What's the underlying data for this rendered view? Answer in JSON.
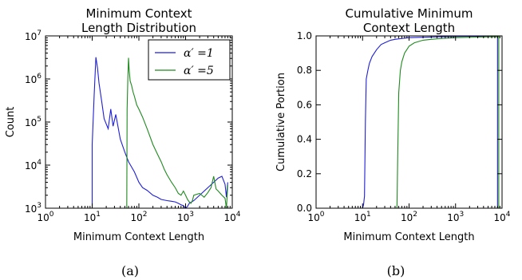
{
  "chart_data": [
    {
      "type": "line",
      "title": [
        "Minimum Context",
        "Length Distribution"
      ],
      "xlabel": "Minimum Context Length",
      "ylabel": "Count",
      "xscale": "log",
      "yscale": "log",
      "xlim": [
        1,
        10000
      ],
      "ylim": [
        1000,
        10000000
      ],
      "x_ticks": [
        {
          "base": "10",
          "exp": "0"
        },
        {
          "base": "10",
          "exp": "1"
        },
        {
          "base": "10",
          "exp": "2"
        },
        {
          "base": "10",
          "exp": "3"
        },
        {
          "base": "10",
          "exp": "4"
        }
      ],
      "y_ticks": [
        {
          "base": "10",
          "exp": "3"
        },
        {
          "base": "10",
          "exp": "4"
        },
        {
          "base": "10",
          "exp": "5"
        },
        {
          "base": "10",
          "exp": "6"
        },
        {
          "base": "10",
          "exp": "7"
        }
      ],
      "legend_position": "top-right",
      "caption": "(a)",
      "series": [
        {
          "name": "α′ =1",
          "color": "#1f1fd6",
          "x": [
            10,
            10,
            11,
            12,
            13,
            14,
            16,
            18,
            20,
            22,
            25,
            28,
            32,
            40,
            50,
            60,
            70,
            80,
            100,
            120,
            150,
            200,
            250,
            300,
            400,
            500,
            600,
            700,
            800,
            900,
            1000,
            1100,
            1200,
            1500,
            2000,
            3000,
            4000,
            5000,
            6000,
            7000,
            7500,
            8000
          ],
          "y": [
            1000,
            30000,
            400000,
            3200000,
            1800000,
            800000,
            300000,
            120000,
            90000,
            70000,
            200000,
            80000,
            150000,
            40000,
            20000,
            12000,
            9000,
            7000,
            4000,
            3000,
            2600,
            2000,
            1800,
            1600,
            1500,
            1450,
            1400,
            1300,
            1200,
            1150,
            1000,
            1100,
            1300,
            1500,
            2000,
            3000,
            4000,
            5000,
            5500,
            3600,
            1800,
            4000
          ]
        },
        {
          "name": "α′ =5",
          "color": "#1f8a1f",
          "x": [
            55,
            56,
            58,
            60,
            62,
            65,
            70,
            75,
            80,
            90,
            100,
            120,
            150,
            200,
            250,
            300,
            350,
            400,
            500,
            600,
            700,
            800,
            900,
            1000,
            1100,
            1200,
            1300,
            1400,
            1500,
            2000,
            2500,
            3000,
            3500,
            4000,
            4500,
            5000,
            6000,
            7000,
            7500,
            8000
          ],
          "y": [
            1000,
            200000,
            1000000,
            3100000,
            1600000,
            900000,
            700000,
            500000,
            400000,
            250000,
            200000,
            130000,
            70000,
            30000,
            18000,
            12000,
            8000,
            6000,
            4000,
            3000,
            2200,
            2000,
            2500,
            2000,
            1600,
            1400,
            1300,
            1500,
            2000,
            2200,
            1800,
            2300,
            3000,
            5500,
            2800,
            2500,
            2000,
            1700,
            1000,
            3500
          ]
        }
      ]
    },
    {
      "type": "line",
      "title": [
        "Cumulative Minimum",
        "Context Length"
      ],
      "xlabel": "Minimum Context Length",
      "ylabel": "Cumulative Portion",
      "xscale": "log",
      "yscale": "linear",
      "xlim": [
        1,
        10000
      ],
      "ylim": [
        0.0,
        1.0
      ],
      "x_ticks": [
        {
          "base": "10",
          "exp": "0"
        },
        {
          "base": "10",
          "exp": "1"
        },
        {
          "base": "10",
          "exp": "2"
        },
        {
          "base": "10",
          "exp": "3"
        },
        {
          "base": "10",
          "exp": "4"
        }
      ],
      "y_ticks": [
        "0.0",
        "0.2",
        "0.4",
        "0.6",
        "0.8",
        "1.0"
      ],
      "caption": "(b)",
      "series": [
        {
          "color": "#1f1fd6",
          "x": [
            10,
            10.5,
            11,
            11.5,
            12,
            13,
            14,
            16,
            20,
            25,
            30,
            40,
            50,
            70,
            100,
            200,
            500,
            1000,
            3000,
            7000,
            8000,
            8000
          ],
          "y": [
            0.0,
            0.02,
            0.07,
            0.5,
            0.75,
            0.8,
            0.84,
            0.88,
            0.92,
            0.95,
            0.96,
            0.975,
            0.98,
            0.985,
            0.99,
            0.992,
            0.995,
            0.997,
            0.998,
            0.999,
            0.999,
            0.0
          ]
        },
        {
          "color": "#1f8a1f",
          "x": [
            55,
            57,
            60,
            63,
            65,
            70,
            80,
            100,
            130,
            200,
            300,
            500,
            1000,
            3000,
            7000,
            8500,
            8500
          ],
          "y": [
            0.0,
            0.3,
            0.67,
            0.75,
            0.8,
            0.85,
            0.9,
            0.94,
            0.96,
            0.975,
            0.98,
            0.985,
            0.99,
            0.993,
            0.995,
            0.995,
            0.0
          ]
        }
      ]
    }
  ]
}
